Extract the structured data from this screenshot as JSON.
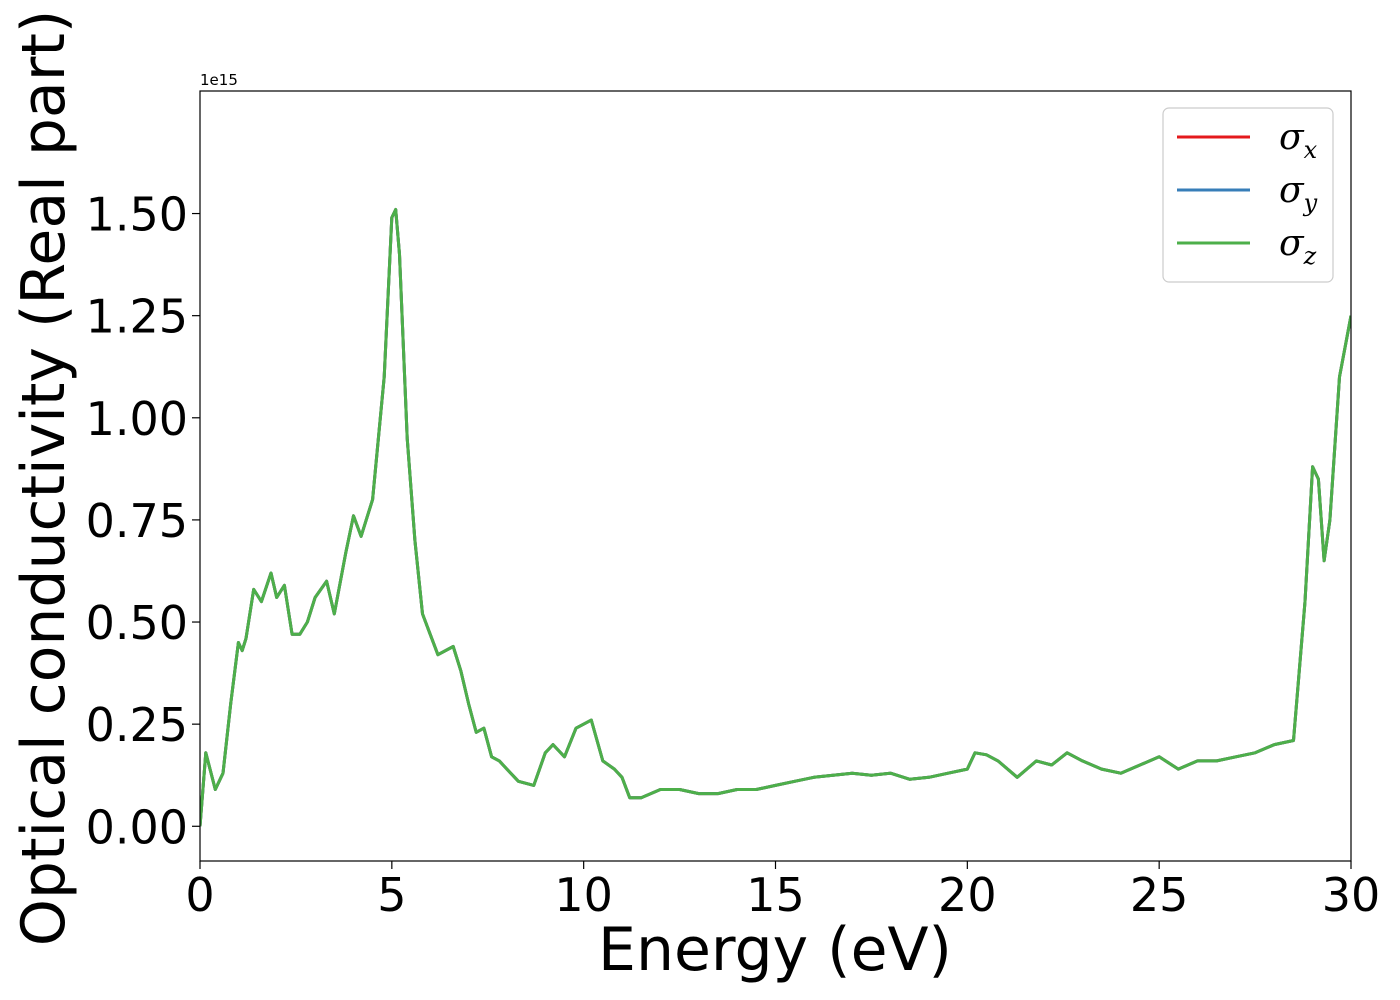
{
  "chart_data": {
    "type": "line",
    "title": "",
    "xlabel": "Energy (eV)",
    "ylabel": "Optical conductivity (Real part)",
    "y_offset_label": "1e15",
    "xlim": [
      0,
      30
    ],
    "ylim": [
      -0.085,
      1.8
    ],
    "x_ticks": [
      0,
      5,
      10,
      15,
      20,
      25,
      30
    ],
    "x_tick_labels": [
      "0",
      "5",
      "10",
      "15",
      "20",
      "25",
      "30"
    ],
    "y_ticks": [
      0,
      0.25,
      0.5,
      0.75,
      1.0,
      1.25,
      1.5
    ],
    "y_tick_labels": [
      "0.00",
      "0.25",
      "0.50",
      "0.75",
      "1.00",
      "1.25",
      "1.50"
    ],
    "grid": false,
    "legend_position": "top-right",
    "series": [
      {
        "name": "x",
        "symbol": "σ",
        "color": "#e41a1c"
      },
      {
        "name": "y",
        "symbol": "σ",
        "color": "#377eb8"
      },
      {
        "name": "z",
        "symbol": "σ",
        "color": "#4daf4a"
      }
    ],
    "x": [
      0,
      0.15,
      0.4,
      0.6,
      0.8,
      1.0,
      1.1,
      1.2,
      1.4,
      1.6,
      1.85,
      2.0,
      2.2,
      2.4,
      2.6,
      2.8,
      3.0,
      3.3,
      3.5,
      3.8,
      4.0,
      4.2,
      4.5,
      4.8,
      5.0,
      5.1,
      5.2,
      5.4,
      5.6,
      5.8,
      6.0,
      6.2,
      6.6,
      6.8,
      7.0,
      7.2,
      7.4,
      7.6,
      7.8,
      8.0,
      8.3,
      8.7,
      9.0,
      9.2,
      9.5,
      9.8,
      10.2,
      10.5,
      10.8,
      11.0,
      11.2,
      11.5,
      12.0,
      12.5,
      13.0,
      13.5,
      14.0,
      14.5,
      15.0,
      15.5,
      16.0,
      16.5,
      17.0,
      17.5,
      18.0,
      18.5,
      19.0,
      19.5,
      20.0,
      20.2,
      20.5,
      20.8,
      21.3,
      21.8,
      22.2,
      22.6,
      23.0,
      23.5,
      24.0,
      24.5,
      25.0,
      25.5,
      26.0,
      26.5,
      27.0,
      27.5,
      28.0,
      28.5,
      28.8,
      29.0,
      29.15,
      29.3,
      29.45,
      29.7,
      30.0
    ],
    "y": [
      0.0,
      0.18,
      0.09,
      0.13,
      0.3,
      0.45,
      0.43,
      0.46,
      0.58,
      0.55,
      0.62,
      0.56,
      0.59,
      0.47,
      0.47,
      0.5,
      0.56,
      0.6,
      0.52,
      0.67,
      0.76,
      0.71,
      0.8,
      1.1,
      1.49,
      1.51,
      1.4,
      0.95,
      0.7,
      0.52,
      0.47,
      0.42,
      0.44,
      0.38,
      0.3,
      0.23,
      0.24,
      0.17,
      0.16,
      0.14,
      0.11,
      0.1,
      0.18,
      0.2,
      0.17,
      0.24,
      0.26,
      0.16,
      0.14,
      0.12,
      0.07,
      0.07,
      0.09,
      0.09,
      0.08,
      0.08,
      0.09,
      0.09,
      0.1,
      0.11,
      0.12,
      0.125,
      0.13,
      0.125,
      0.13,
      0.115,
      0.12,
      0.13,
      0.14,
      0.18,
      0.175,
      0.16,
      0.12,
      0.16,
      0.15,
      0.18,
      0.16,
      0.14,
      0.13,
      0.15,
      0.17,
      0.14,
      0.16,
      0.16,
      0.17,
      0.18,
      0.2,
      0.21,
      0.55,
      0.88,
      0.85,
      0.65,
      0.75,
      1.1,
      1.25
    ]
  }
}
